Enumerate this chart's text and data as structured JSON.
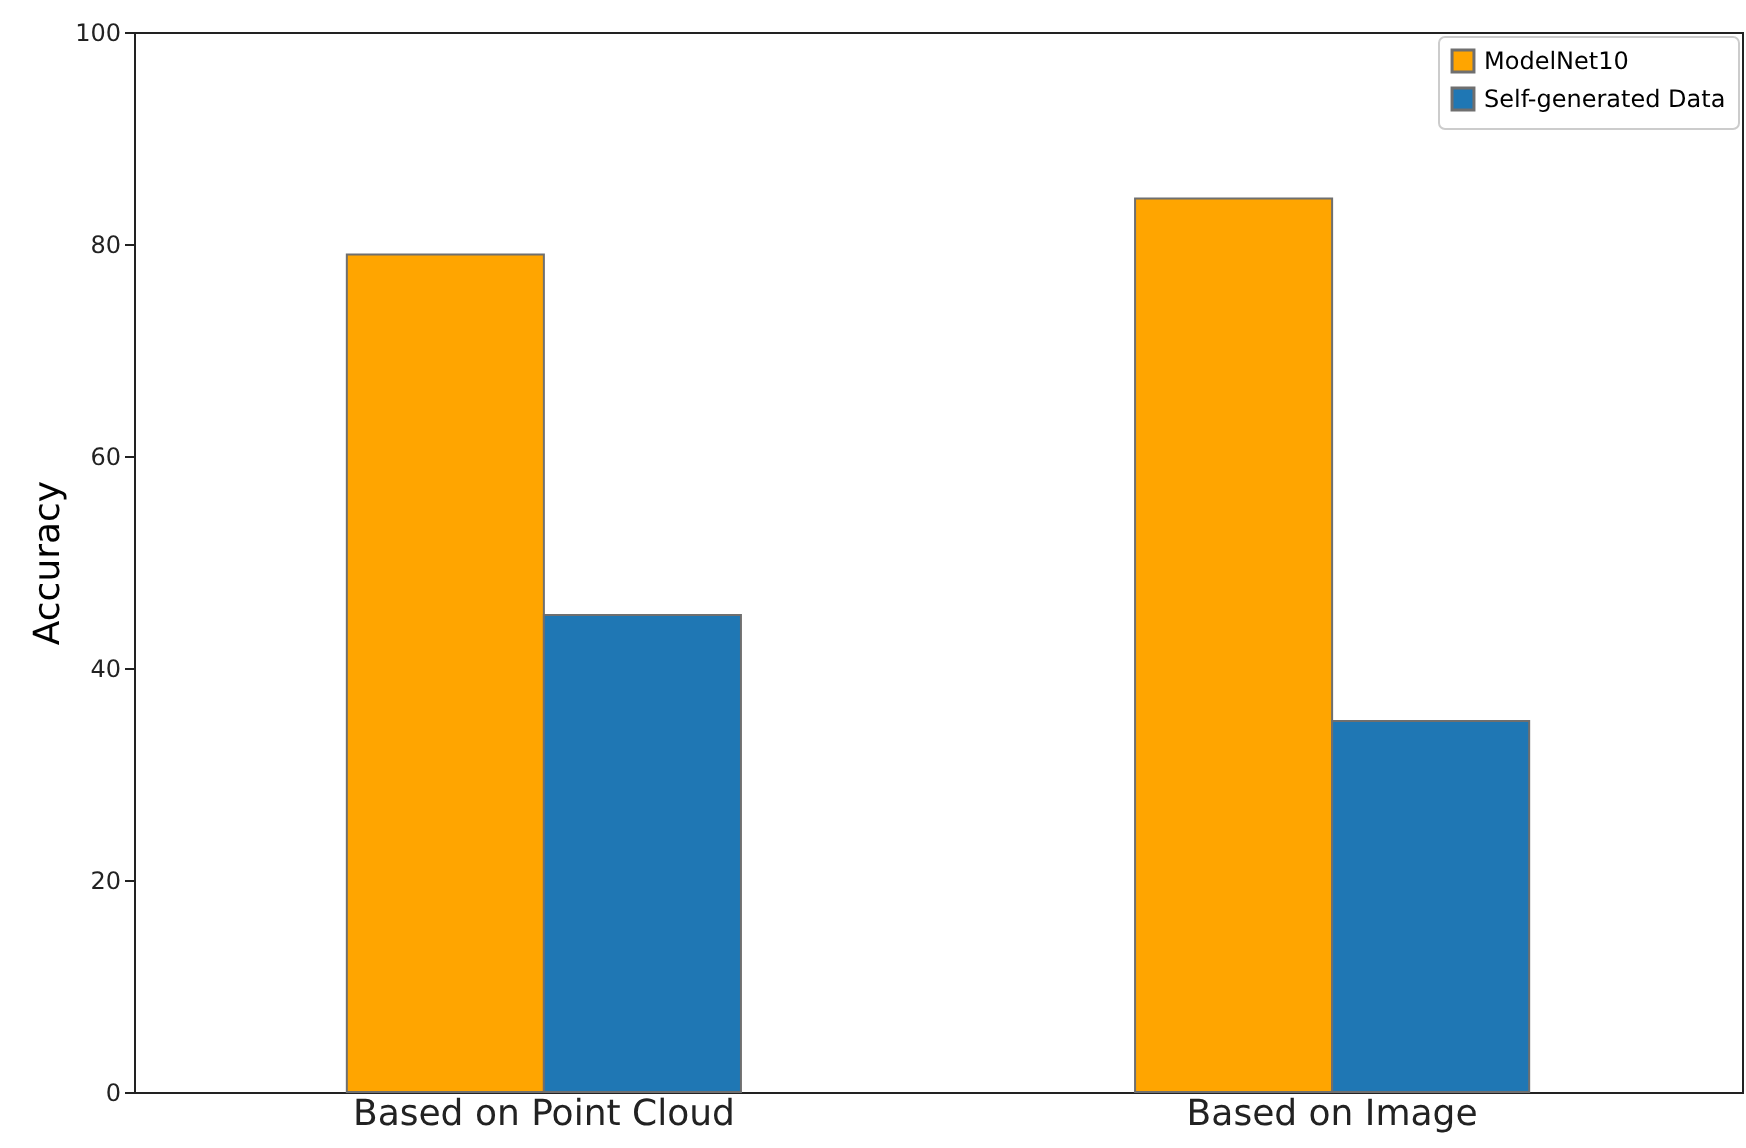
{
  "chart_data": {
    "type": "bar",
    "ylabel": "Accuracy",
    "categories": [
      "Based on Point Cloud",
      "Based on Image"
    ],
    "series": [
      {
        "name": "ModelNet10",
        "color": "#ffa500",
        "values": [
          79,
          84.3
        ]
      },
      {
        "name": "Self-generated Data",
        "color": "#1f77b4",
        "values": [
          45,
          35
        ]
      }
    ],
    "ylim": [
      0,
      100
    ],
    "yticks": [
      0,
      20,
      40,
      60,
      80,
      100
    ],
    "grid": false,
    "legend": "top right"
  }
}
